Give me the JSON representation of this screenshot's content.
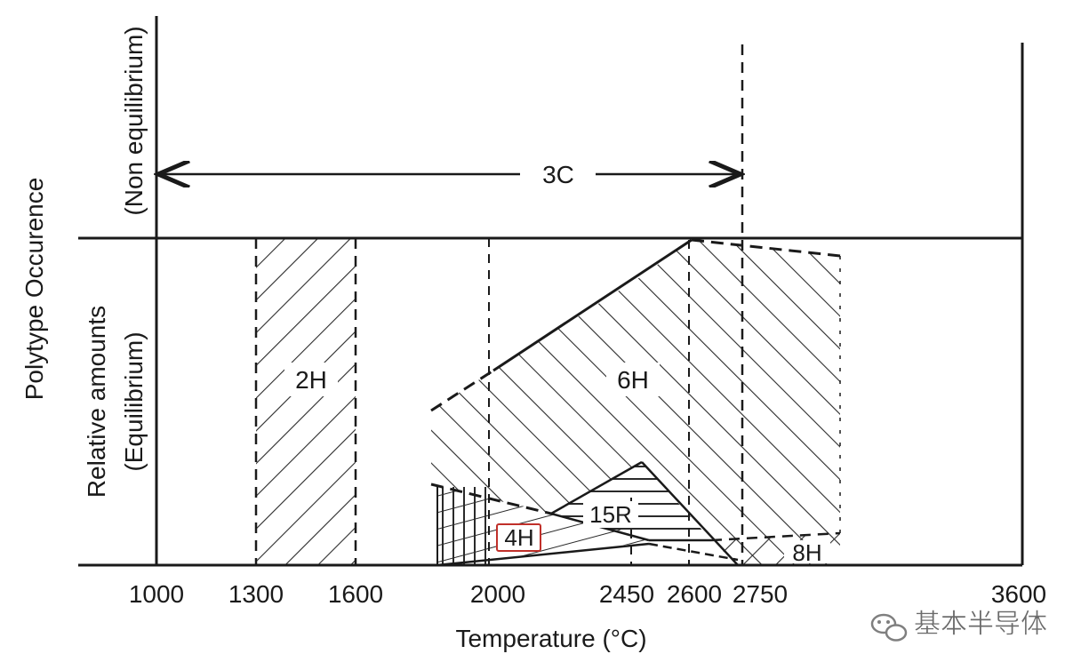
{
  "figure": {
    "y_label_outer": "Polytype Occurence",
    "y_label_upper": "(Non equilibrium)",
    "y_label_lower_1": "Relative amounts",
    "y_label_lower_2": "(Equilibrium)",
    "x_label": "Temperature (°C)",
    "x_ticks": [
      "1000",
      "1300",
      "1600",
      "2000",
      "2450",
      "2600",
      "2750",
      "3600"
    ],
    "region_labels": {
      "c3": "3C",
      "h2": "2H",
      "h6": "6H",
      "r15": "15R",
      "h4": "4H",
      "h8": "8H"
    },
    "highlight_color": "#c0302a",
    "watermark_text": "基本半导体"
  }
}
